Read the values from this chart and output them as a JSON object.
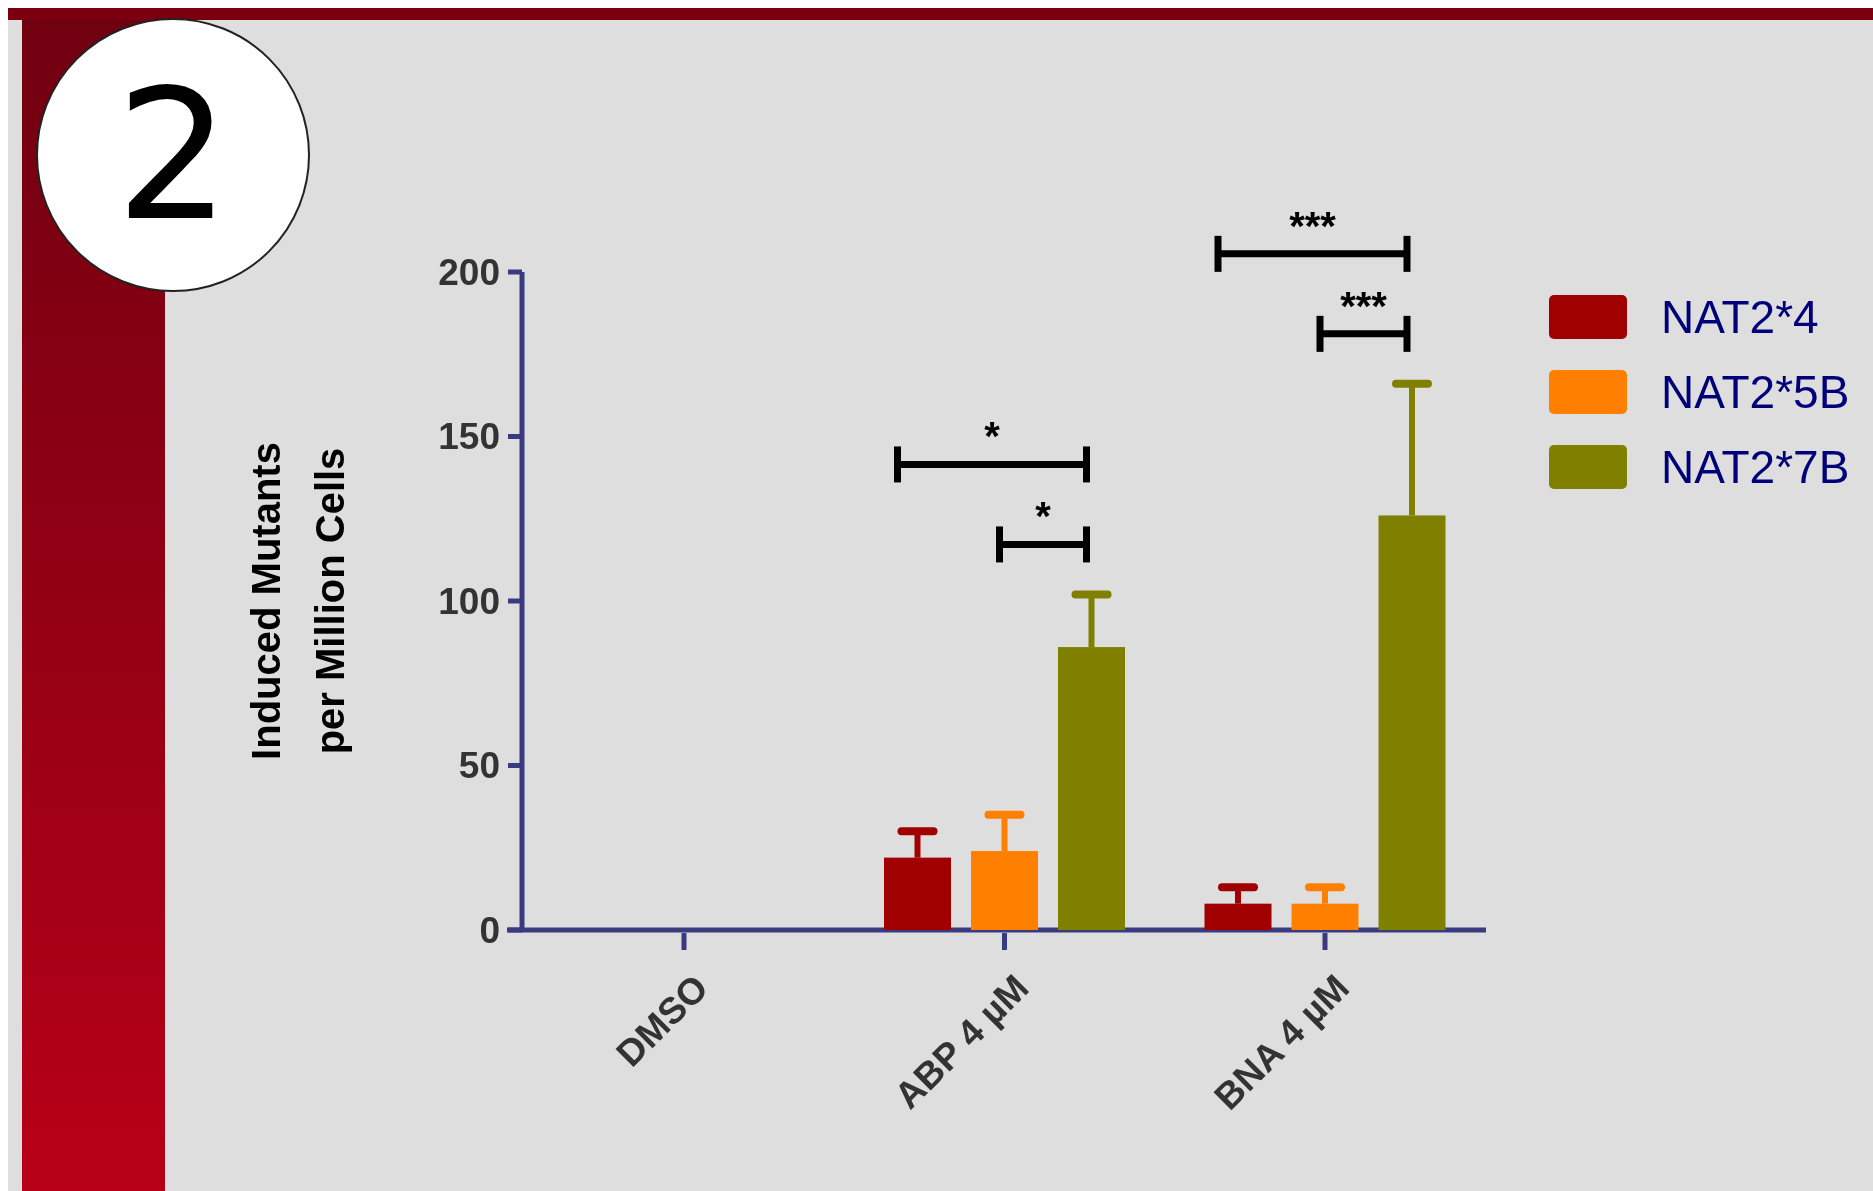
{
  "chart_data": {
    "type": "bar",
    "ylabel": "Induced Mutants\nper Million Cells",
    "categories": [
      "DMSO",
      "ABP 4 µM",
      "BNA 4 µM"
    ],
    "series": [
      {
        "name": "NAT2*4",
        "color": "#a00000",
        "values": [
          0,
          22,
          8
        ],
        "errors": [
          0,
          8,
          5
        ]
      },
      {
        "name": "NAT2*5B",
        "color": "#ff8000",
        "values": [
          0,
          24,
          8
        ],
        "errors": [
          0,
          11,
          5
        ]
      },
      {
        "name": "NAT2*7B",
        "color": "#808000",
        "values": [
          0,
          86,
          126
        ],
        "errors": [
          0,
          16,
          40
        ]
      }
    ],
    "ylim": [
      0,
      200
    ],
    "yticks": [
      0,
      50,
      100,
      150,
      200
    ],
    "grid": false,
    "legend": "right",
    "annotations": [
      "2",
      "*",
      "*",
      "***",
      "***"
    ]
  }
}
